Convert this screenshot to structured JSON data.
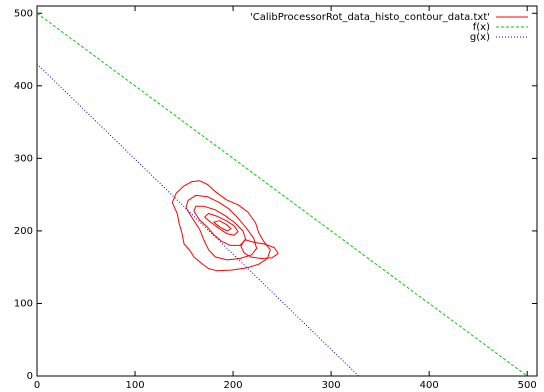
{
  "chart_data": {
    "type": "line",
    "title": "",
    "xlabel": "",
    "ylabel": "",
    "xlim": [
      0,
      510
    ],
    "ylim": [
      0,
      510
    ],
    "x_ticks": [
      0,
      100,
      200,
      300,
      400,
      500
    ],
    "y_ticks": [
      0,
      100,
      200,
      300,
      400,
      500
    ],
    "x_tick_labels": [
      "0",
      "100",
      "200",
      "300",
      "400",
      "500"
    ],
    "y_tick_labels": [
      "0",
      "100",
      "200",
      "300",
      "400",
      "500"
    ],
    "grid": false,
    "legend_position": "top-right",
    "series": [
      {
        "name": "'CalibProcessorRot_data_histo_contour_data.txt'",
        "color": "#ff0000",
        "style": "solid",
        "kind": "contour",
        "contours": [
          [
            [
              143,
              224
            ],
            [
              138,
              239
            ],
            [
              142,
              252
            ],
            [
              150,
              262
            ],
            [
              158,
              268
            ],
            [
              166,
              269
            ],
            [
              174,
              264
            ],
            [
              182,
              254
            ],
            [
              193,
              243
            ],
            [
              205,
              236
            ],
            [
              215,
              226
            ],
            [
              223,
              211
            ],
            [
              226,
              198
            ],
            [
              231,
              186
            ],
            [
              238,
              174
            ],
            [
              235,
              162
            ],
            [
              226,
              154
            ],
            [
              214,
              149
            ],
            [
              198,
              146
            ],
            [
              184,
              145
            ],
            [
              175,
              148
            ],
            [
              168,
              155
            ],
            [
              160,
              164
            ],
            [
              156,
              173
            ],
            [
              150,
              182
            ],
            [
              148,
              196
            ],
            [
              145,
              210
            ],
            [
              143,
              224
            ]
          ],
          [
            [
              154,
              242
            ],
            [
              152,
              232
            ],
            [
              160,
              214
            ],
            [
              166,
              202
            ],
            [
              170,
              188
            ],
            [
              175,
              174
            ],
            [
              182,
              164
            ],
            [
              194,
              160
            ],
            [
              207,
              162
            ],
            [
              219,
              167
            ],
            [
              224,
              176
            ],
            [
              221,
              190
            ],
            [
              213,
              205
            ],
            [
              204,
              219
            ],
            [
              196,
              230
            ],
            [
              186,
              239
            ],
            [
              174,
              247
            ],
            [
              162,
              249
            ],
            [
              154,
              242
            ]
          ],
          [
            [
              160,
              227
            ],
            [
              166,
              215
            ],
            [
              174,
              205
            ],
            [
              180,
              195
            ],
            [
              188,
              186
            ],
            [
              197,
              180
            ],
            [
              207,
              180
            ],
            [
              213,
              188
            ],
            [
              210,
              200
            ],
            [
              202,
              211
            ],
            [
              192,
              221
            ],
            [
              182,
              229
            ],
            [
              170,
              234
            ],
            [
              162,
              234
            ],
            [
              160,
              227
            ]
          ],
          [
            [
              171,
              219
            ],
            [
              178,
              211
            ],
            [
              186,
              203
            ],
            [
              194,
              196
            ],
            [
              201,
              194
            ],
            [
              205,
              199
            ],
            [
              201,
              207
            ],
            [
              193,
              214
            ],
            [
              184,
              220
            ],
            [
              175,
              224
            ],
            [
              171,
              219
            ]
          ],
          [
            [
              180,
              212
            ],
            [
              187,
              205
            ],
            [
              194,
              200
            ],
            [
              198,
              203
            ],
            [
              193,
              209
            ],
            [
              186,
              214
            ],
            [
              180,
              212
            ]
          ],
          [
            [
              212,
              188
            ],
            [
              222,
              184
            ],
            [
              232,
              182
            ],
            [
              242,
              177
            ],
            [
              246,
              169
            ],
            [
              240,
              163
            ],
            [
              229,
              162
            ],
            [
              218,
              164
            ],
            [
              211,
              170
            ],
            [
              208,
              179
            ],
            [
              212,
              188
            ]
          ]
        ]
      },
      {
        "name": "f(x)",
        "color": "#00cc00",
        "style": "dashed",
        "kind": "line",
        "x": [
          0,
          500
        ],
        "y": [
          500,
          0
        ]
      },
      {
        "name": "g(x)",
        "color": "#0000cc",
        "style": "dotted",
        "kind": "line",
        "x": [
          0,
          328
        ],
        "y": [
          430,
          0
        ]
      }
    ]
  }
}
